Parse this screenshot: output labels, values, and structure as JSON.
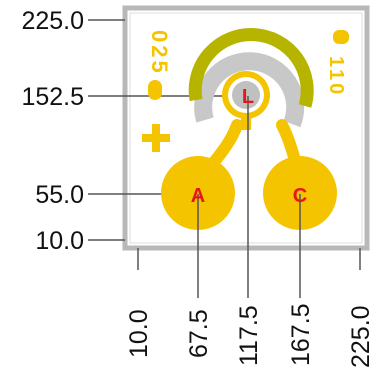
{
  "diagram": {
    "y_axis_ticks": [
      "225.0",
      "152.5",
      "55.0",
      "10.0"
    ],
    "x_axis_ticks": [
      "10.0",
      "67.5",
      "117.5",
      "167.5",
      "225.0"
    ],
    "pads": {
      "L": "L",
      "A": "A",
      "C": "C"
    },
    "silkscreen": {
      "left_text": "025",
      "right_text": "110"
    },
    "colors": {
      "pad_yellow": "#F5C400",
      "arc_olive": "#B7B400",
      "board_border": "#b8b8b8",
      "label_red": "#E8141C",
      "silk_gray": "#c4c4c4",
      "leader_line": "#555555"
    }
  }
}
